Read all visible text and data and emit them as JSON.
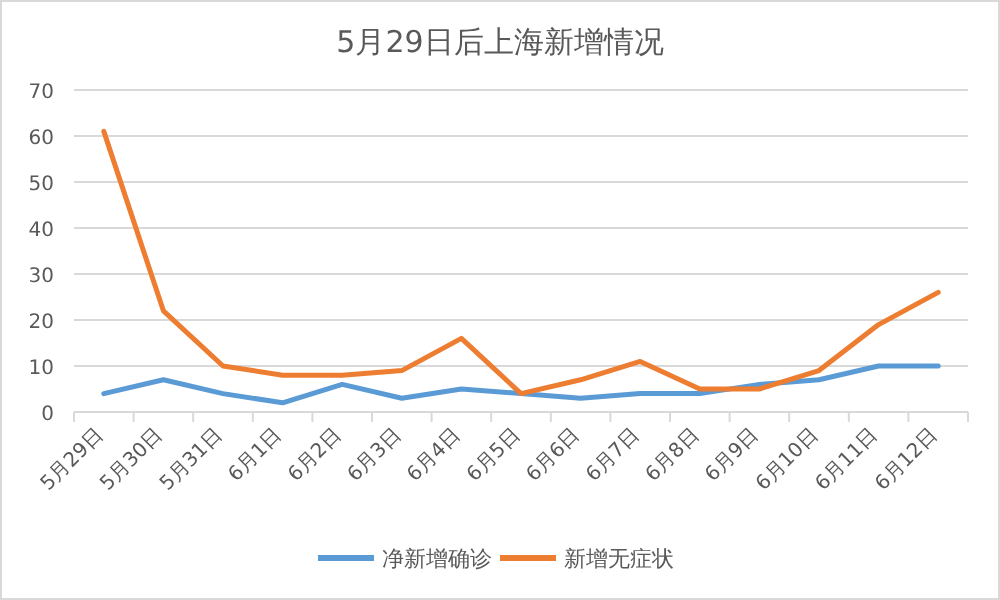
{
  "chart_data": {
    "type": "line",
    "title": "5月29日后上海新增情况",
    "categories": [
      "5月29日",
      "5月30日",
      "5月31日",
      "6月1日",
      "6月2日",
      "6月3日",
      "6月4日",
      "6月5日",
      "6月6日",
      "6月7日",
      "6月8日",
      "6月9日",
      "6月10日",
      "6月11日",
      "6月12日"
    ],
    "series": [
      {
        "name": "净新增确诊",
        "color": "#5b9bd5",
        "values": [
          4,
          7,
          4,
          2,
          6,
          3,
          5,
          4,
          3,
          4,
          4,
          6,
          7,
          10,
          10
        ]
      },
      {
        "name": "新增无症状",
        "color": "#ed7d31",
        "values": [
          61,
          22,
          10,
          8,
          8,
          9,
          16,
          4,
          7,
          11,
          5,
          5,
          9,
          19,
          26
        ]
      }
    ],
    "ylim": [
      0,
      70
    ],
    "yticks": [
      0,
      10,
      20,
      30,
      40,
      50,
      60,
      70
    ],
    "grid": "y",
    "legend": "bottom",
    "marker": "none",
    "line_style": "solid"
  }
}
